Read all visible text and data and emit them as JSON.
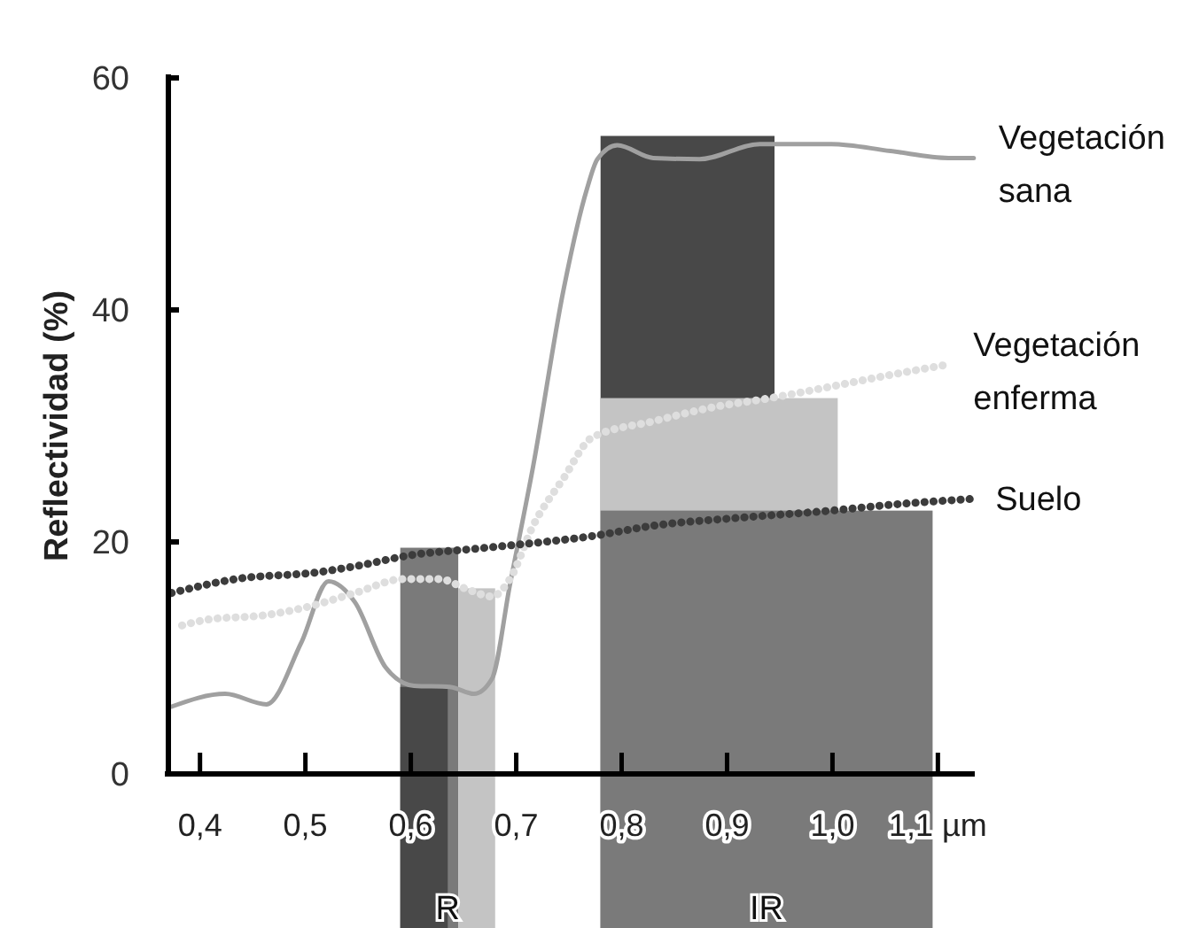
{
  "chart_data": {
    "type": "line",
    "ylabel": "Reflectividad (%)",
    "xlim": [
      0.37,
      1.135
    ],
    "ylim": [
      0,
      60
    ],
    "xticks": [
      {
        "value": 0.4,
        "label": "0,4"
      },
      {
        "value": 0.5,
        "label": "0,5"
      },
      {
        "value": 0.6,
        "label": "0,6"
      },
      {
        "value": 0.7,
        "label": "0,7"
      },
      {
        "value": 0.8,
        "label": "0,8"
      },
      {
        "value": 0.9,
        "label": "0,9"
      },
      {
        "value": 1.0,
        "label": "1,0"
      },
      {
        "value": 1.1,
        "label": "1,1 µm"
      }
    ],
    "yticks": [
      0,
      20,
      40,
      60
    ],
    "grid": false,
    "annotations": [
      "R",
      "IR"
    ],
    "series": [
      {
        "type": "histogram",
        "color": "#7a7a7a",
        "bins": [
          0.59,
          0.645
        ],
        "values": [
          19.5
        ]
      },
      {
        "type": "histogram",
        "color": "#484848",
        "bins": [
          0.59,
          0.635
        ],
        "values": [
          7.5
        ]
      },
      {
        "type": "histogram",
        "color": "#c4c4c4",
        "bins": [
          0.645,
          0.68
        ],
        "values": [
          16
        ]
      },
      {
        "type": "histogram",
        "color": "#484848",
        "bins": [
          0.78,
          0.945
        ],
        "values": [
          55
        ]
      },
      {
        "type": "histogram",
        "color": "#c4c4c4",
        "bins": [
          0.78,
          1.005
        ],
        "values": [
          32.4
        ]
      },
      {
        "type": "histogram",
        "color": "#7a7a7a",
        "bins": [
          0.78,
          1.095
        ],
        "values": [
          22.7
        ]
      },
      {
        "name": "Vegetación sana",
        "color": "#a0a0a0",
        "line_style": "solid",
        "x": [
          0.373,
          0.424,
          0.463,
          0.496,
          0.522,
          0.547,
          0.576,
          0.603,
          0.637,
          0.66,
          0.677,
          0.694,
          0.716,
          0.745,
          0.767,
          0.777,
          0.796,
          0.83,
          0.874,
          0.931,
          0.999,
          1.055,
          1.11,
          1.134
        ],
        "values": [
          5.8,
          6.9,
          6,
          11.3,
          16.6,
          14.8,
          9.2,
          7.6,
          7.5,
          6.9,
          8.2,
          16.3,
          26.5,
          41.8,
          50.4,
          53,
          54.2,
          53.1,
          53,
          54.3,
          54.3,
          53.7,
          53.1,
          53.1
        ]
      },
      {
        "name": "Vegetación enferma",
        "color": "#dedede",
        "line_style": "dotted",
        "x": [
          0.383,
          0.407,
          0.463,
          0.502,
          0.547,
          0.593,
          0.627,
          0.654,
          0.677,
          0.694,
          0.716,
          0.745,
          0.772,
          0.83,
          0.886,
          0.941,
          0.999,
          1.055,
          1.11
        ],
        "values": [
          12.8,
          13.3,
          13.7,
          14.4,
          15.6,
          16.8,
          16.8,
          15.9,
          15.3,
          16.8,
          21.4,
          25.5,
          29,
          30.4,
          31.6,
          32.4,
          33.4,
          34.4,
          35.3
        ]
      },
      {
        "name": "Suelo",
        "color": "#3c3c3c",
        "line_style": "dotted",
        "x": [
          0.373,
          0.434,
          0.513,
          0.547,
          0.603,
          0.66,
          0.705,
          0.772,
          0.83,
          0.914,
          0.999,
          1.055,
          1.131
        ],
        "values": [
          15.6,
          16.8,
          17.4,
          17.9,
          18.9,
          19.4,
          19.8,
          20.5,
          21.4,
          22.1,
          22.7,
          23.2,
          23.7
        ]
      }
    ]
  }
}
